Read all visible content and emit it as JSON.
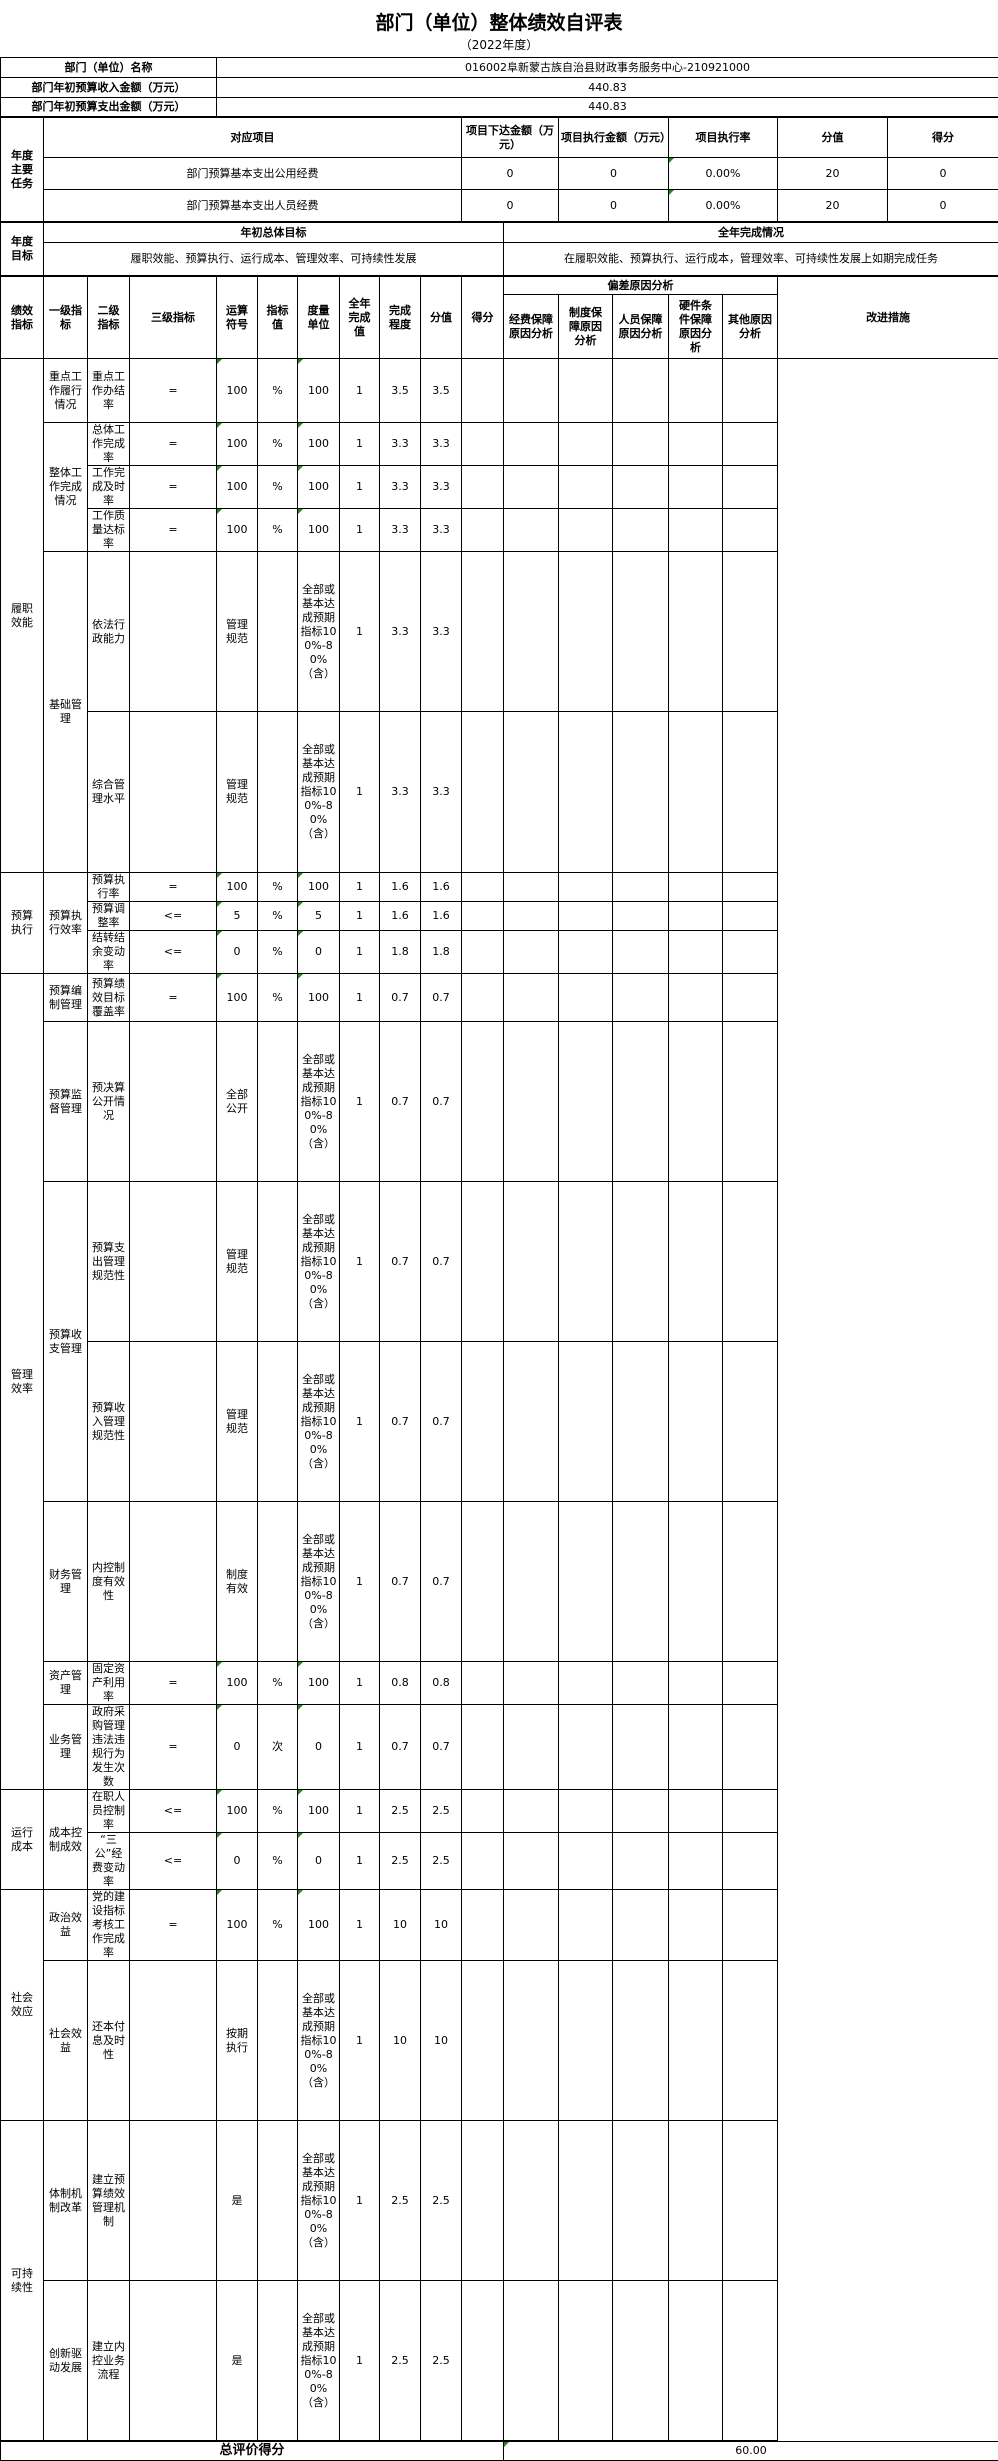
{
  "title": "部门（单位）整体绩效自评表",
  "subtitle": "（2022年度）",
  "basic": {
    "name_label": "部门（单位）名称",
    "name_value": "016002阜新蒙古族自治县财政事务服务中心-210921000",
    "income_label": "部门年初预算收入金额（万元）",
    "income_value": "440.83",
    "expense_label": "部门年初预算支出金额（万元）",
    "expense_value": "440.83"
  },
  "tasks": {
    "label": "年度主要任务",
    "headers": [
      "对应项目",
      "项目下达金额（万元）",
      "项目执行金额（万元）",
      "项目执行率",
      "分值",
      "得分"
    ],
    "rows": [
      {
        "item": "部门预算基本支出公用经费",
        "allocated": "0",
        "executed": "0",
        "rate": "0.00%",
        "value": "20",
        "score": "0"
      },
      {
        "item": "部门预算基本支出人员经费",
        "allocated": "0",
        "executed": "0",
        "rate": "0.00%",
        "value": "20",
        "score": "0"
      }
    ]
  },
  "goals": {
    "label": "年度目标",
    "initial_header": "年初总体目标",
    "completion_header": "全年完成情况",
    "initial_text": "履职效能、预算执行、运行成本、管理效率、可持续性发展",
    "completion_text": "在履职效能、预算执行、运行成本，管理效率、可持续性发展上如期完成任务"
  },
  "indicators": {
    "label": "绩效指标",
    "headers": {
      "level1": "一级指标",
      "level2": "二级指标",
      "level3": "三级指标",
      "operator": "运算符号",
      "target": "指标值",
      "unit": "度量单位",
      "actual": "全年完成值",
      "degree": "完成程度",
      "value": "分值",
      "score": "得分",
      "deviation": "偏差原因分析",
      "deviation_sub": [
        "经费保障原因分析",
        "制度保障原因分析",
        "人员保障原因分析",
        "硬件条件保障原因分析",
        "其他原因分析"
      ],
      "improvement": "改进措施"
    },
    "groups": [
      {
        "level1": "履职效能",
        "subgroups": [
          {
            "level2": "重点工作履行情况",
            "rows": [
              {
                "level3": "重点工作办结率",
                "op": "=",
                "target": "100",
                "unit": "%",
                "actual": "100",
                "degree": "1",
                "value": "3.5",
                "score": "3.5"
              }
            ]
          },
          {
            "level2": "整体工作完成情况",
            "rows": [
              {
                "level3": "总体工作完成率",
                "op": "=",
                "target": "100",
                "unit": "%",
                "actual": "100",
                "degree": "1",
                "value": "3.3",
                "score": "3.3"
              },
              {
                "level3": "工作完成及时率",
                "op": "=",
                "target": "100",
                "unit": "%",
                "actual": "100",
                "degree": "1",
                "value": "3.3",
                "score": "3.3"
              },
              {
                "level3": "工作质量达标率",
                "op": "=",
                "target": "100",
                "unit": "%",
                "actual": "100",
                "degree": "1",
                "value": "3.3",
                "score": "3.3"
              }
            ]
          },
          {
            "level2": "基础管理",
            "rows": [
              {
                "level3": "依法行政能力",
                "op": "",
                "target": "管理规范",
                "unit": "",
                "actual": "全部或基本达成预期指标100%-80%（含）",
                "degree": "1",
                "value": "3.3",
                "score": "3.3"
              },
              {
                "level3": "综合管理水平",
                "op": "",
                "target": "管理规范",
                "unit": "",
                "actual": "全部或基本达成预期指标100%-80%（含）",
                "degree": "1",
                "value": "3.3",
                "score": "3.3"
              }
            ]
          }
        ]
      },
      {
        "level1": "预算执行",
        "subgroups": [
          {
            "level2": "预算执行效率",
            "rows": [
              {
                "level3": "预算执行率",
                "op": "=",
                "target": "100",
                "unit": "%",
                "actual": "100",
                "degree": "1",
                "value": "1.6",
                "score": "1.6"
              },
              {
                "level3": "预算调整率",
                "op": "<=",
                "target": "5",
                "unit": "%",
                "actual": "5",
                "degree": "1",
                "value": "1.6",
                "score": "1.6"
              },
              {
                "level3": "结转结余变动率",
                "op": "<=",
                "target": "0",
                "unit": "%",
                "actual": "0",
                "degree": "1",
                "value": "1.8",
                "score": "1.8"
              }
            ]
          }
        ]
      },
      {
        "level1": "管理效率",
        "subgroups": [
          {
            "level2": "预算编制管理",
            "rows": [
              {
                "level3": "预算绩效目标覆盖率",
                "op": "=",
                "target": "100",
                "unit": "%",
                "actual": "100",
                "degree": "1",
                "value": "0.7",
                "score": "0.7"
              }
            ]
          },
          {
            "level2": "预算监督管理",
            "rows": [
              {
                "level3": "预决算公开情况",
                "op": "",
                "target": "全部公开",
                "unit": "",
                "actual": "全部或基本达成预期指标100%-80%（含）",
                "degree": "1",
                "value": "0.7",
                "score": "0.7"
              }
            ]
          },
          {
            "level2": "预算收支管理",
            "rows": [
              {
                "level3": "预算支出管理规范性",
                "op": "",
                "target": "管理规范",
                "unit": "",
                "actual": "全部或基本达成预期指标100%-80%（含）",
                "degree": "1",
                "value": "0.7",
                "score": "0.7"
              },
              {
                "level3": "预算收入管理规范性",
                "op": "",
                "target": "管理规范",
                "unit": "",
                "actual": "全部或基本达成预期指标100%-80%（含）",
                "degree": "1",
                "value": "0.7",
                "score": "0.7"
              }
            ]
          },
          {
            "level2": "财务管理",
            "rows": [
              {
                "level3": "内控制度有效性",
                "op": "",
                "target": "制度有效",
                "unit": "",
                "actual": "全部或基本达成预期指标100%-80%（含）",
                "degree": "1",
                "value": "0.7",
                "score": "0.7"
              }
            ]
          },
          {
            "level2": "资产管理",
            "rows": [
              {
                "level3": "固定资产利用率",
                "op": "=",
                "target": "100",
                "unit": "%",
                "actual": "100",
                "degree": "1",
                "value": "0.8",
                "score": "0.8"
              }
            ]
          },
          {
            "level2": "业务管理",
            "rows": [
              {
                "level3": "政府采购管理违法违规行为发生次数",
                "op": "=",
                "target": "0",
                "unit": "次",
                "actual": "0",
                "degree": "1",
                "value": "0.7",
                "score": "0.7"
              }
            ]
          }
        ]
      },
      {
        "level1": "运行成本",
        "subgroups": [
          {
            "level2": "成本控制成效",
            "rows": [
              {
                "level3": "在职人员控制率",
                "op": "<=",
                "target": "100",
                "unit": "%",
                "actual": "100",
                "degree": "1",
                "value": "2.5",
                "score": "2.5"
              },
              {
                "level3": "“三公”经费变动率",
                "op": "<=",
                "target": "0",
                "unit": "%",
                "actual": "0",
                "degree": "1",
                "value": "2.5",
                "score": "2.5"
              }
            ]
          }
        ]
      },
      {
        "level1": "社会效应",
        "subgroups": [
          {
            "level2": "政治效益",
            "rows": [
              {
                "level3": "党的建设指标考核工作完成率",
                "op": "=",
                "target": "100",
                "unit": "%",
                "actual": "100",
                "degree": "1",
                "value": "10",
                "score": "10"
              }
            ]
          },
          {
            "level2": "社会效益",
            "rows": [
              {
                "level3": "还本付息及时性",
                "op": "",
                "target": "按期执行",
                "unit": "",
                "actual": "全部或基本达成预期指标100%-80%（含）",
                "degree": "1",
                "value": "10",
                "score": "10"
              }
            ]
          }
        ]
      },
      {
        "level1": "可持续性",
        "subgroups": [
          {
            "level2": "体制机制改革",
            "rows": [
              {
                "level3": "建立预算绩效管理机制",
                "op": "",
                "target": "是",
                "unit": "",
                "actual": "全部或基本达成预期指标100%-80%（含）",
                "degree": "1",
                "value": "2.5",
                "score": "2.5"
              }
            ]
          },
          {
            "level2": "创新驱动发展",
            "rows": [
              {
                "level3": "建立内控业务流程",
                "op": "",
                "target": "是",
                "unit": "",
                "actual": "全部或基本达成预期指标100%-80%（含）",
                "degree": "1",
                "value": "2.5",
                "score": "2.5"
              }
            ]
          }
        ]
      }
    ]
  },
  "total": {
    "label": "总评价得分",
    "value": "60.00"
  },
  "colors": {
    "border": "#000000",
    "marker": "#1a8a1a"
  }
}
